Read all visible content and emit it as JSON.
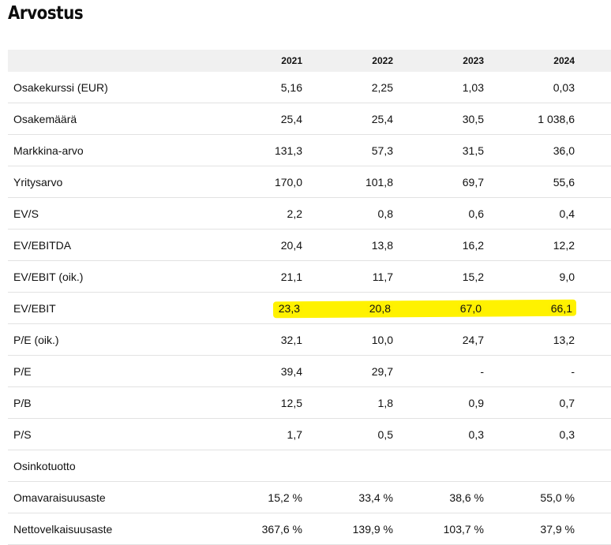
{
  "title": "Arvostus",
  "columns": [
    "2021",
    "2022",
    "2023",
    "2024"
  ],
  "rows": [
    {
      "label": "Osakekurssi (EUR)",
      "values": [
        "5,16",
        "2,25",
        "1,03",
        "0,03"
      ]
    },
    {
      "label": "Osakemäärä",
      "values": [
        "25,4",
        "25,4",
        "30,5",
        "1 038,6"
      ]
    },
    {
      "label": "Markkina-arvo",
      "values": [
        "131,3",
        "57,3",
        "31,5",
        "36,0"
      ]
    },
    {
      "label": "Yritysarvo",
      "values": [
        "170,0",
        "101,8",
        "69,7",
        "55,6"
      ]
    },
    {
      "label": "EV/S",
      "values": [
        "2,2",
        "0,8",
        "0,6",
        "0,4"
      ]
    },
    {
      "label": "EV/EBITDA",
      "values": [
        "20,4",
        "13,8",
        "16,2",
        "12,2"
      ]
    },
    {
      "label": "EV/EBIT (oik.)",
      "values": [
        "21,1",
        "11,7",
        "15,2",
        "9,0"
      ]
    },
    {
      "label": "EV/EBIT",
      "values": [
        "23,3",
        "20,8",
        "67,0",
        "66,1"
      ],
      "highlighted": true
    },
    {
      "label": "P/E (oik.)",
      "values": [
        "32,1",
        "10,0",
        "24,7",
        "13,2"
      ]
    },
    {
      "label": "P/E",
      "values": [
        "39,4",
        "29,7",
        "-",
        "-"
      ]
    },
    {
      "label": "P/B",
      "values": [
        "12,5",
        "1,8",
        "0,9",
        "0,7"
      ]
    },
    {
      "label": "P/S",
      "values": [
        "1,7",
        "0,5",
        "0,3",
        "0,3"
      ]
    },
    {
      "label": "Osinkotuotto",
      "values": [
        "",
        "",
        "",
        ""
      ]
    },
    {
      "label": "Omavaraisuusaste",
      "values": [
        "15,2 %",
        "33,4 %",
        "38,6 %",
        "55,0 %"
      ]
    },
    {
      "label": "Nettovelkaisuusaste",
      "values": [
        "367,6 %",
        "139,9 %",
        "103,7 %",
        "37,9 %"
      ]
    }
  ],
  "colors": {
    "highlight": "#fff200",
    "header_bg": "#f0f0f0",
    "row_border": "#e2e2e2"
  }
}
